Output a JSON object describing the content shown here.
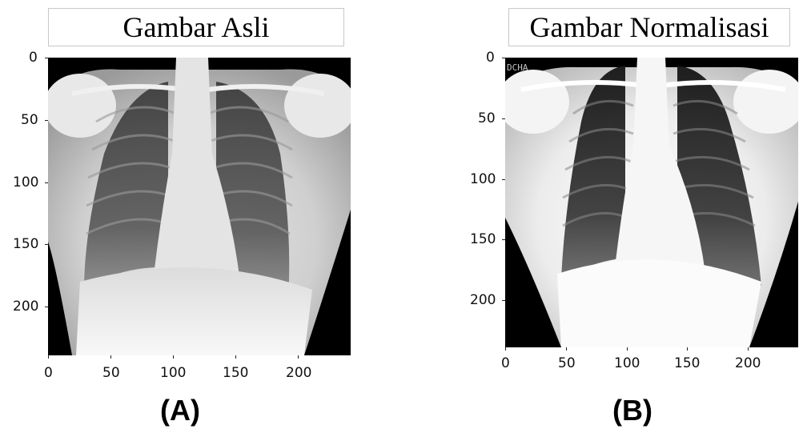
{
  "panels": [
    {
      "id": "A",
      "title": "Gambar Asli",
      "label": "(A)",
      "watermark": "",
      "x_ticks": [
        "0",
        "50",
        "100",
        "150",
        "200"
      ],
      "y_ticks": [
        "0",
        "50",
        "100",
        "150",
        "200"
      ]
    },
    {
      "id": "B",
      "title": "Gambar Normalisasi",
      "label": "(B)",
      "watermark": "DCHA",
      "x_ticks": [
        "0",
        "50",
        "100",
        "150",
        "200"
      ],
      "y_ticks": [
        "0",
        "50",
        "100",
        "150",
        "200"
      ]
    }
  ]
}
